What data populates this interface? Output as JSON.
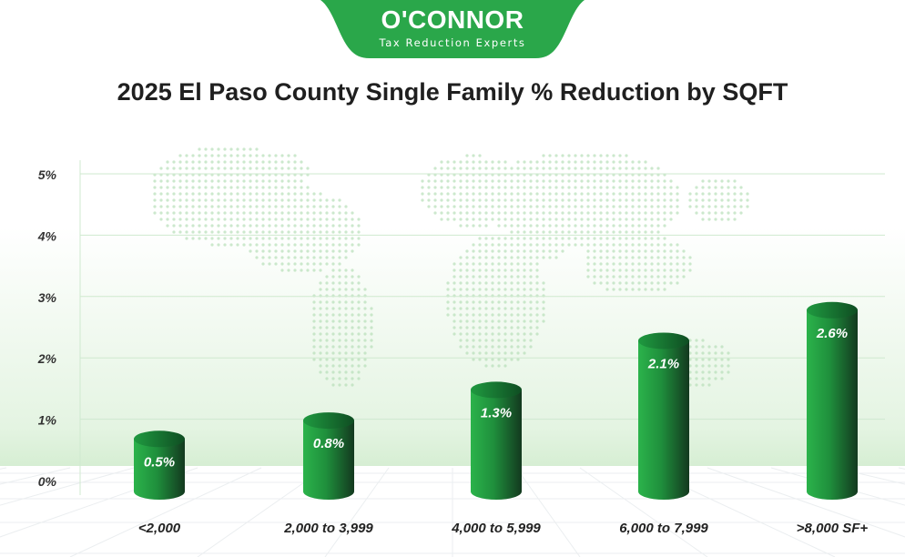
{
  "logo": {
    "name": "O'CONNOR",
    "tagline": "Tax Reduction Experts"
  },
  "chart_data": {
    "type": "bar",
    "title": "2025 El Paso County Single Family % Reduction by SQFT",
    "xlabel": "",
    "ylabel": "",
    "categories": [
      "<2,000",
      "2,000 to 3,999",
      "4,000 to 5,999",
      "6,000 to 7,999",
      ">8,000 SF+"
    ],
    "values": [
      0.5,
      0.8,
      1.3,
      2.1,
      2.6
    ],
    "data_labels": [
      "0.5%",
      "0.8%",
      "1.3%",
      "2.1%",
      "2.6%"
    ],
    "ylim": [
      0,
      5
    ],
    "yticks": [
      0,
      1,
      2,
      3,
      4,
      5
    ],
    "ytick_labels": [
      "0%",
      "1%",
      "2%",
      "3%",
      "4%",
      "5%"
    ],
    "grid": true,
    "legend": "none",
    "bar_style": "cylinder",
    "colors": {
      "bar_light": "#2bb34b",
      "bar_dark": "#13391f",
      "bar_top": "#1e8a3a",
      "gridline": "#cfe9cf",
      "brand_green": "#2aa74a"
    }
  }
}
